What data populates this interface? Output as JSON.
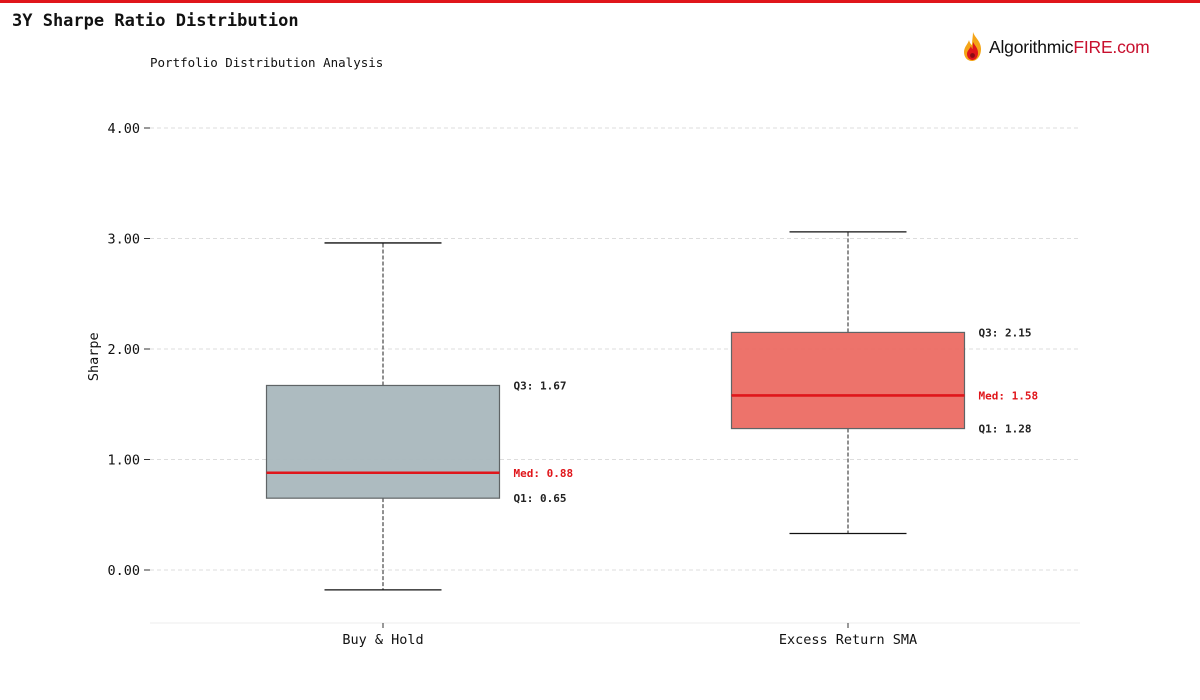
{
  "header": {
    "title": "3Y Sharpe Ratio Distribution",
    "subtitle": "Portfolio Distribution Analysis"
  },
  "brand": {
    "name_part1": "Algorithmic",
    "name_part2": "FIRE.com",
    "icon": "flame-icon"
  },
  "colors": {
    "accent": "#e0161b",
    "median_line": "#e0161b",
    "box_buy_hold": "#a9b7bd",
    "box_sma": "#ec6b63",
    "box_edge": "#5f6466",
    "grid": "#dddddd",
    "label_text": "#222222"
  },
  "chart_data": {
    "type": "boxplot",
    "title": "3Y Sharpe Ratio Distribution",
    "subtitle": "Portfolio Distribution Analysis",
    "ylabel": "Sharpe",
    "ylim": [
      -0.48,
      4.4
    ],
    "yticks": [
      0,
      1,
      2,
      3,
      4
    ],
    "ytick_labels": [
      "0.00",
      "1.00",
      "2.00",
      "3.00",
      "4.00"
    ],
    "grid": true,
    "categories": [
      "Buy & Hold",
      "Excess Return SMA"
    ],
    "boxes": [
      {
        "category": "Buy & Hold",
        "whisker_low": -0.18,
        "q1": 0.65,
        "median": 0.88,
        "q3": 1.67,
        "whisker_high": 2.96,
        "color": "#a9b7bd",
        "label_q1": "Q1: 0.65",
        "label_median": "Med: 0.88",
        "label_q3": "Q3: 1.67"
      },
      {
        "category": "Excess Return SMA",
        "whisker_low": 0.33,
        "q1": 1.28,
        "median": 1.58,
        "q3": 2.15,
        "whisker_high": 3.06,
        "color": "#ec6b63",
        "label_q1": "Q1: 1.28",
        "label_median": "Med: 1.58",
        "label_q3": "Q3: 2.15"
      }
    ]
  }
}
